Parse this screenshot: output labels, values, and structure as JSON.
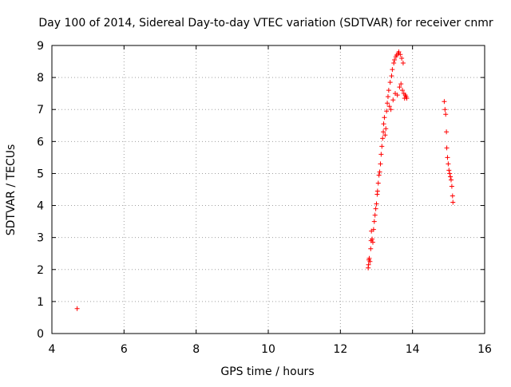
{
  "chart_data": {
    "type": "scatter",
    "title": "Day 100 of 2014, Sidereal Day-to-day VTEC variation (SDTVAR) for receiver cnmr",
    "xlabel": "GPS time / hours",
    "ylabel": "SDTVAR / TECUs",
    "xlim": [
      4,
      16
    ],
    "ylim": [
      0,
      9
    ],
    "xticks": [
      4,
      6,
      8,
      10,
      12,
      14,
      16
    ],
    "yticks": [
      0,
      1,
      2,
      3,
      4,
      5,
      6,
      7,
      8,
      9
    ],
    "grid": true,
    "marker": "+",
    "series": [
      {
        "name": "SDTVAR",
        "color": "#ff0000",
        "points": [
          [
            4.7,
            0.78
          ],
          [
            12.77,
            2.05
          ],
          [
            12.78,
            2.15
          ],
          [
            12.79,
            2.3
          ],
          [
            12.8,
            2.35
          ],
          [
            12.82,
            2.25
          ],
          [
            12.84,
            2.65
          ],
          [
            12.85,
            2.9
          ],
          [
            12.86,
            3.2
          ],
          [
            12.88,
            2.95
          ],
          [
            12.9,
            2.85
          ],
          [
            12.92,
            3.25
          ],
          [
            12.94,
            3.5
          ],
          [
            12.96,
            3.7
          ],
          [
            12.98,
            3.9
          ],
          [
            13.0,
            4.05
          ],
          [
            13.02,
            4.35
          ],
          [
            13.03,
            4.45
          ],
          [
            13.05,
            4.7
          ],
          [
            13.07,
            4.95
          ],
          [
            13.09,
            5.05
          ],
          [
            13.11,
            5.3
          ],
          [
            13.13,
            5.6
          ],
          [
            13.15,
            5.85
          ],
          [
            13.17,
            6.1
          ],
          [
            13.19,
            6.3
          ],
          [
            13.2,
            6.55
          ],
          [
            13.22,
            6.75
          ],
          [
            13.24,
            6.2
          ],
          [
            13.26,
            6.4
          ],
          [
            13.28,
            6.95
          ],
          [
            13.3,
            7.2
          ],
          [
            13.32,
            7.4
          ],
          [
            13.34,
            7.6
          ],
          [
            13.36,
            7.1
          ],
          [
            13.38,
            7.85
          ],
          [
            13.4,
            7.0
          ],
          [
            13.42,
            8.05
          ],
          [
            13.44,
            8.25
          ],
          [
            13.46,
            7.3
          ],
          [
            13.48,
            8.45
          ],
          [
            13.5,
            8.55
          ],
          [
            13.52,
            7.5
          ],
          [
            13.54,
            8.65
          ],
          [
            13.56,
            8.7
          ],
          [
            13.58,
            7.45
          ],
          [
            13.6,
            8.75
          ],
          [
            13.62,
            8.8
          ],
          [
            13.64,
            7.7
          ],
          [
            13.66,
            8.72
          ],
          [
            13.68,
            7.8
          ],
          [
            13.7,
            8.6
          ],
          [
            13.72,
            7.6
          ],
          [
            13.74,
            8.45
          ],
          [
            13.76,
            7.5
          ],
          [
            13.78,
            7.35
          ],
          [
            13.8,
            7.45
          ],
          [
            13.82,
            7.4
          ],
          [
            13.84,
            7.35
          ],
          [
            14.88,
            7.25
          ],
          [
            14.9,
            7.0
          ],
          [
            14.92,
            6.85
          ],
          [
            14.94,
            6.3
          ],
          [
            14.95,
            5.8
          ],
          [
            14.97,
            5.5
          ],
          [
            14.99,
            5.3
          ],
          [
            15.01,
            5.1
          ],
          [
            15.03,
            5.0
          ],
          [
            15.05,
            4.9
          ],
          [
            15.07,
            4.8
          ],
          [
            15.09,
            4.6
          ],
          [
            15.11,
            4.3
          ],
          [
            15.12,
            4.1
          ]
        ]
      }
    ]
  }
}
